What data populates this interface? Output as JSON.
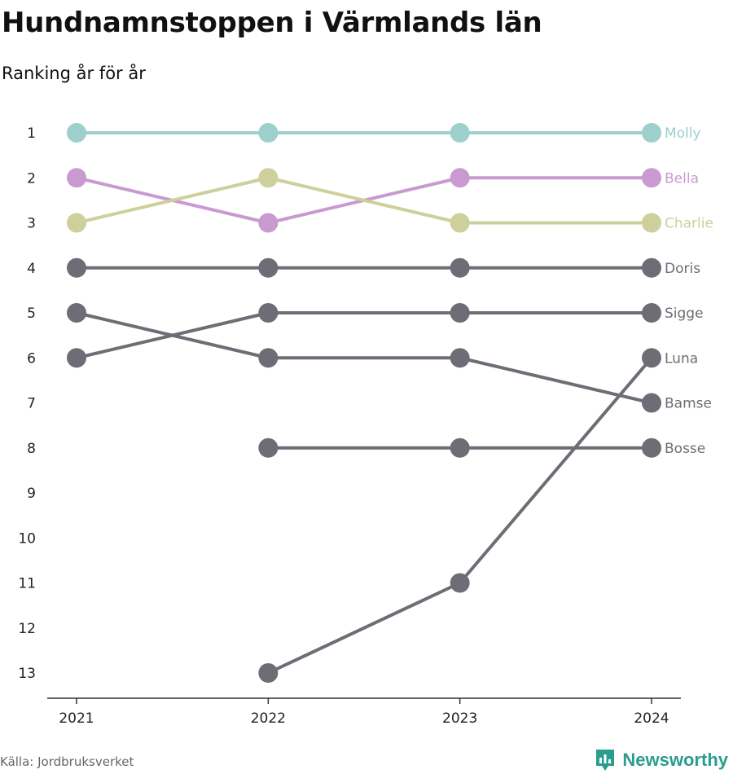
{
  "title": "Hundnamnstoppen i Värmlands län",
  "subtitle": "Ranking år för år",
  "source": "Källa: Jordbruksverket",
  "brand": "Newsworthy",
  "colors": {
    "highlight_molly": "#9dcfcd",
    "highlight_bella": "#c99ad0",
    "highlight_charlie": "#cdd09a",
    "gray": "#6e6d75",
    "brand": "#2a9d8f"
  },
  "chart_data": {
    "type": "line",
    "x": [
      "2021",
      "2022",
      "2023",
      "2024"
    ],
    "y_ticks": [
      1,
      2,
      3,
      4,
      5,
      6,
      7,
      8,
      9,
      10,
      11,
      12,
      13
    ],
    "y_inverted": true,
    "ylim": [
      1,
      13
    ],
    "series": [
      {
        "name": "Molly",
        "values": [
          1,
          1,
          1,
          1
        ],
        "color": "#9dcfcd"
      },
      {
        "name": "Bella",
        "values": [
          2,
          3,
          2,
          2
        ],
        "color": "#c99ad0"
      },
      {
        "name": "Charlie",
        "values": [
          3,
          2,
          3,
          3
        ],
        "color": "#cdd09a"
      },
      {
        "name": "Doris",
        "values": [
          4,
          4,
          4,
          4
        ],
        "color": "#6e6d75"
      },
      {
        "name": "Sigge",
        "values": [
          6,
          5,
          5,
          5
        ],
        "color": "#6e6d75"
      },
      {
        "name": "Luna",
        "values": [
          null,
          13,
          11,
          6
        ],
        "color": "#6e6d75"
      },
      {
        "name": "Bamse",
        "values": [
          5,
          6,
          6,
          7
        ],
        "color": "#6e6d75"
      },
      {
        "name": "Bosse",
        "values": [
          null,
          8,
          8,
          8
        ],
        "color": "#6e6d75"
      }
    ]
  }
}
